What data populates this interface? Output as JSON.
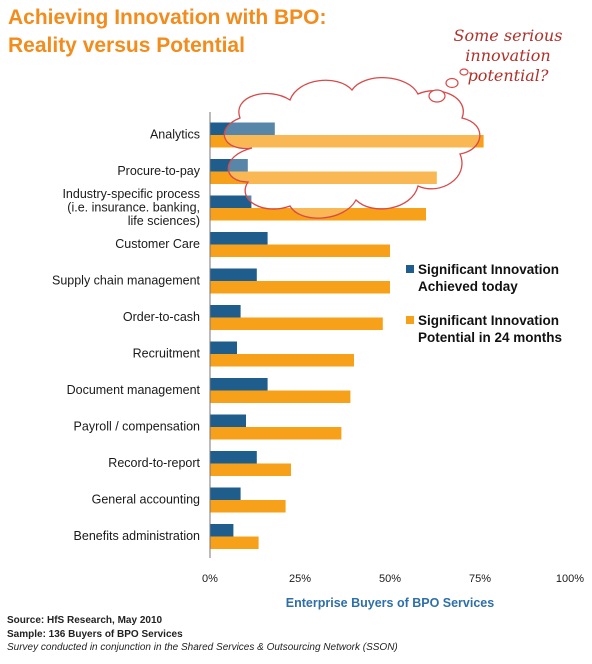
{
  "title": {
    "line1": "Achieving Innovation with BPO:",
    "line2": "Reality versus Potential"
  },
  "callout": {
    "line1": "Some serious",
    "line2": "innovation",
    "line3": "potential?"
  },
  "chart_data": {
    "type": "bar",
    "orientation": "horizontal",
    "categories": [
      [
        "Analytics"
      ],
      [
        "Procure-to-pay"
      ],
      [
        "Industry-specific process",
        "(i.e. insurance. banking,",
        "life sciences)"
      ],
      [
        "Customer Care"
      ],
      [
        "Supply chain management"
      ],
      [
        "Order-to-cash"
      ],
      [
        "Recruitment"
      ],
      [
        "Document management"
      ],
      [
        "Payroll / compensation"
      ],
      [
        "Record-to-report"
      ],
      [
        "General accounting"
      ],
      [
        "Benefits administration"
      ]
    ],
    "series": [
      {
        "name": "Significant Innovation Achieved today",
        "legend_lines": [
          "Significant Innovation",
          "Achieved today"
        ],
        "color": "#1f5e8c",
        "values": [
          18,
          10.5,
          11.5,
          16,
          13,
          8.5,
          7.5,
          16,
          10,
          13,
          8.5,
          6.5
        ]
      },
      {
        "name": "Significant Innovation Potential in 24 months",
        "legend_lines": [
          "Significant Innovation",
          "Potential in 24 months"
        ],
        "color": "#f7a11a",
        "values": [
          76,
          63,
          60,
          50,
          50,
          48,
          40,
          39,
          36.5,
          22.5,
          21,
          13.5
        ]
      }
    ],
    "xlim": [
      0,
      100
    ],
    "xticks": [
      "0%",
      "25%",
      "50%",
      "75%",
      "100%"
    ],
    "xlabel": "Enterprise Buyers of BPO Services",
    "grid": false,
    "legend_position": "right"
  },
  "footer": {
    "source": "Source:  HfS Research, May 2010",
    "sample": "Sample:  136 Buyers of BPO Services",
    "note": "Survey conducted in conjunction in the Shared Services & Outsourcing Network (SSON)"
  }
}
